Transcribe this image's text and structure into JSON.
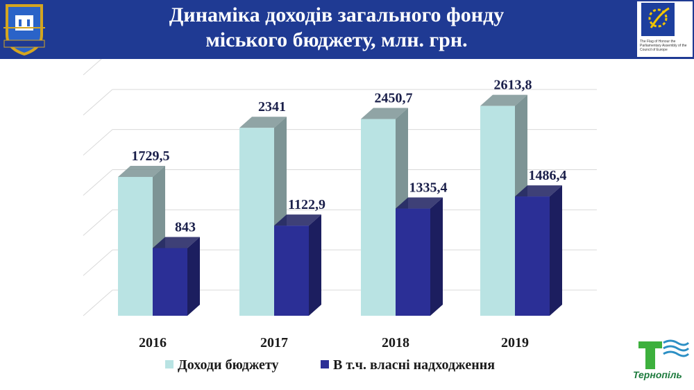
{
  "header": {
    "title_line1": "Динаміка доходів загального фонду",
    "title_line2": "міського бюджету, млн. грн.",
    "coat_of_arms_label": "ТЕРНОПІЛЬ",
    "council_badge_text": "The Flag of Honour the Parliamentary Assembly of the Council of Europe"
  },
  "colors": {
    "header_bg": "#1f3a93",
    "series_total": "#b9e3e3",
    "series_total_side": "#7d9495",
    "series_own": "#2b2f96",
    "series_own_side": "#1c1e5f"
  },
  "chart_data": {
    "type": "bar",
    "categories": [
      "2016",
      "2017",
      "2018",
      "2019"
    ],
    "series": [
      {
        "name": "Доходи бюджету",
        "values": [
          1729.5,
          2341,
          2450.7,
          2613.8
        ],
        "labels": [
          "1729,5",
          "2341",
          "2450,7",
          "2613,8"
        ]
      },
      {
        "name": "В т.ч. власні надходження",
        "values": [
          843,
          1122.9,
          1335.4,
          1486.4
        ],
        "labels": [
          "843",
          "1122,9",
          "1335,4",
          "1486,4"
        ]
      }
    ],
    "ylim": [
      0,
      3000
    ],
    "grid": true,
    "legend": "bottom",
    "style": "3d-column"
  },
  "logo": {
    "label": "Тернопіль",
    "icon": "ternopil-city-logo-icon"
  }
}
